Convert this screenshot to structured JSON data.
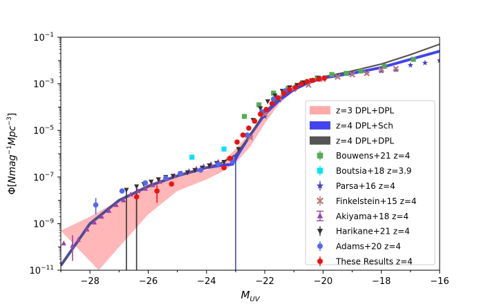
{
  "chart_data": {
    "type": "scatter",
    "title": "",
    "xlabel": "M_UV",
    "ylabel": "Φ[Nmag⁻¹Mpc⁻³]",
    "xlim": [
      -29,
      -16
    ],
    "ylim_log10": [
      -11,
      -1
    ],
    "x_ticks": [
      -28,
      -26,
      -24,
      -22,
      -20,
      -18,
      -16
    ],
    "y_ticks_log10": [
      -11,
      -9,
      -7,
      -5,
      -3,
      -1
    ],
    "legend_position": "center-right",
    "bands": [
      {
        "name": "z=3 DPL+DPL",
        "color": "#ffaaaa",
        "upper": [
          [
            -29,
            -9.3
          ],
          [
            -28,
            -8.7
          ],
          [
            -27,
            -8.0
          ],
          [
            -26,
            -7.3
          ],
          [
            -25,
            -6.9
          ],
          [
            -24,
            -6.7
          ],
          [
            -23.5,
            -6.4
          ],
          [
            -23,
            -5.8
          ],
          [
            -22.5,
            -5.1
          ],
          [
            -22,
            -4.2
          ],
          [
            -21.5,
            -3.5
          ],
          [
            -21,
            -3.1
          ],
          [
            -20.5,
            -2.85
          ]
        ],
        "lower": [
          [
            -27.7,
            -11.0
          ],
          [
            -27,
            -10.0
          ],
          [
            -26,
            -8.6
          ],
          [
            -25,
            -7.6
          ],
          [
            -24,
            -7.1
          ],
          [
            -23.5,
            -6.8
          ],
          [
            -23,
            -6.4
          ],
          [
            -22.5,
            -5.7
          ],
          [
            -22,
            -4.7
          ],
          [
            -21.5,
            -3.85
          ],
          [
            -21,
            -3.3
          ],
          [
            -20.5,
            -3.0
          ]
        ]
      }
    ],
    "lines": [
      {
        "name": "z=4 DPL+Sch",
        "color": "#4444ee",
        "points": [
          [
            -29,
            -10.8
          ],
          [
            -28,
            -9.0
          ],
          [
            -27,
            -8.0
          ],
          [
            -26,
            -7.4
          ],
          [
            -25,
            -6.95
          ],
          [
            -24,
            -6.6
          ],
          [
            -23.5,
            -6.5
          ],
          [
            -23.1,
            -6.45
          ],
          [
            -22.9,
            -6.0
          ],
          [
            -22.5,
            -5.2
          ],
          [
            -22,
            -4.3
          ],
          [
            -21.5,
            -3.7
          ],
          [
            -21,
            -3.25
          ],
          [
            -20.5,
            -2.95
          ],
          [
            -20,
            -2.75
          ],
          [
            -19,
            -2.55
          ],
          [
            -18,
            -2.3
          ],
          [
            -17,
            -1.95
          ],
          [
            -16,
            -1.6
          ]
        ]
      },
      {
        "name": "z=4 DPL+DPL",
        "color": "#555555",
        "points": [
          [
            -29,
            -10.8
          ],
          [
            -28,
            -9.0
          ],
          [
            -27,
            -8.0
          ],
          [
            -26,
            -7.4
          ],
          [
            -25,
            -6.95
          ],
          [
            -24,
            -6.6
          ],
          [
            -23.5,
            -6.4
          ],
          [
            -23,
            -6.05
          ],
          [
            -22.5,
            -5.2
          ],
          [
            -22,
            -4.2
          ],
          [
            -21.5,
            -3.6
          ],
          [
            -21,
            -3.2
          ],
          [
            -20.5,
            -2.9
          ],
          [
            -20,
            -2.7
          ],
          [
            -19,
            -2.45
          ],
          [
            -18,
            -2.15
          ],
          [
            -17,
            -1.75
          ],
          [
            -16,
            -1.3
          ]
        ]
      }
    ],
    "series": [
      {
        "name": "Bouwens+21 z=4",
        "color": "#55aa55",
        "marker": "square",
        "x": [
          -22.7,
          -22.2,
          -21.7,
          -21.2,
          -20.7,
          -20.2,
          -19.7,
          -19.2,
          -18.7,
          -17.9,
          -16.9
        ],
        "y": [
          -4.4,
          -3.9,
          -3.4,
          -3.2,
          -2.95,
          -2.75,
          -2.6,
          -2.55,
          -2.45,
          -2.25,
          -1.95
        ]
      },
      {
        "name": "Boutsia+18 z=3.9",
        "color": "#00e5ee",
        "marker": "square",
        "x": [
          -24.5,
          -23.4
        ],
        "y": [
          -6.15,
          -5.8
        ]
      },
      {
        "name": "Parsa+16 z=4",
        "color": "#4444cc",
        "marker": "star",
        "x": [
          -23,
          -22.5,
          -22,
          -21.5,
          -21,
          -20.5,
          -20,
          -19.5,
          -19,
          -18.5,
          -18,
          -17.5,
          -17,
          -16.5,
          -16
        ],
        "y": [
          -6.1,
          -5.3,
          -4.4,
          -3.7,
          -3.25,
          -2.95,
          -2.75,
          -2.7,
          -2.6,
          -2.55,
          -2.45,
          -2.4,
          -2.2,
          -2.1,
          -2.0
        ]
      },
      {
        "name": "Finkelstein+15 z=4",
        "color": "#bb7777",
        "marker": "x",
        "x": [
          -22.5,
          -22,
          -21.5,
          -21,
          -20.5,
          -20,
          -19.5,
          -19,
          -18.5,
          -18,
          -17.5
        ],
        "y": [
          -5.3,
          -4.3,
          -3.6,
          -3.2,
          -3.05,
          -2.8,
          -2.7,
          -2.6,
          -2.55,
          -2.4,
          -2.35
        ]
      },
      {
        "name": "Akiyama+18 z=4",
        "color": "#9944aa",
        "marker": "triangle-up",
        "x": [
          -28.9,
          -28.6,
          -28.4,
          -28.1,
          -27.85,
          -27.6,
          -27.35,
          -27.1,
          -26.85,
          -26.6,
          -26.35,
          -26.1,
          -25.85,
          -25.6,
          -25.35,
          -25.1,
          -24.85,
          -24.6,
          -24.35,
          -24.1,
          -23.85,
          -23.6
        ],
        "y": [
          -9.85,
          -9.95,
          -9.7,
          -9.25,
          -8.95,
          -8.7,
          -8.45,
          -8.2,
          -8.0,
          -7.75,
          -7.6,
          -7.5,
          -7.35,
          -7.2,
          -7.05,
          -6.95,
          -6.85,
          -6.75,
          -6.65,
          -6.55,
          -6.45,
          -6.35
        ]
      },
      {
        "name": "Harikane+21 z=4",
        "color": "#333333",
        "marker": "triangle-down",
        "x": [
          -26.75,
          -26.4,
          -26.15,
          -25.9,
          -25.65,
          -25.4,
          -25.15,
          -24.9,
          -24.65,
          -24.4,
          -24.15,
          -23.9,
          -23.65,
          -23.4,
          -23.15,
          -22.9,
          -22.65,
          -22.4,
          -22.15,
          -21.9,
          -21.65,
          -21.4,
          -21.15,
          -20.9,
          -20.65,
          -20.4,
          -20.15
        ],
        "y": [
          -7.55,
          -7.4,
          -7.3,
          -7.2,
          -7.1,
          -7.0,
          -6.95,
          -6.85,
          -6.8,
          -6.7,
          -6.6,
          -6.5,
          -6.4,
          -6.35,
          -6.25,
          -5.8,
          -5.2,
          -4.55,
          -4.05,
          -3.75,
          -3.5,
          -3.3,
          -3.15,
          -3.05,
          -2.95,
          -2.85,
          -2.75
        ]
      },
      {
        "name": "Adams+20 z=4",
        "color": "#5566ee",
        "marker": "circle",
        "x": [
          -27.8,
          -26.9,
          -26.1,
          -25.4,
          -24.9,
          -24.2,
          -23.6,
          -23.1,
          -22.6,
          -22.1,
          -21.7,
          -21.3
        ],
        "y": [
          -8.2,
          -7.6,
          -7.25,
          -7.05,
          -6.85,
          -6.7,
          -6.45,
          -6.35,
          -5.2,
          -4.2,
          -3.65,
          -3.3
        ]
      },
      {
        "name": "These Results z=4",
        "color": "#ee1111",
        "marker": "circle",
        "x": [
          -26.4,
          -25.7,
          -25.2,
          -23.4,
          -23.2,
          -22.95,
          -22.75,
          -22.55,
          -22.35,
          -22.15,
          -21.95,
          -21.75,
          -21.55,
          -21.35,
          -21.15,
          -20.95,
          -20.75,
          -20.55,
          -20.35,
          -20.15,
          -19.95
        ],
        "y": [
          -7.85,
          -7.6,
          -7.3,
          -6.6,
          -6.2,
          -5.5,
          -5.2,
          -4.9,
          -4.6,
          -4.3,
          -4.1,
          -3.85,
          -3.6,
          -3.4,
          -3.25,
          -3.15,
          -3.0,
          -2.9,
          -2.85,
          -2.8,
          -2.75
        ]
      }
    ],
    "error_bars": [
      {
        "series": "These Results z=4",
        "x": -26.4,
        "y_lo": -9.2,
        "y_hi": -7.5
      },
      {
        "series": "These Results z=4",
        "x": -25.7,
        "y_lo": -8.1,
        "y_hi": -7.35
      },
      {
        "series": "Akiyama+18 z=4",
        "x": -28.6,
        "y_lo": -10.6,
        "y_hi": -9.5
      },
      {
        "series": "Adams+20 z=4",
        "x": -27.8,
        "y_lo": -8.6,
        "y_hi": -7.9
      },
      {
        "series": "Harikane+21 z=4",
        "x": -26.75,
        "y_lo": -11.0,
        "y_hi": -7.5
      },
      {
        "series": "Harikane+21 z=4",
        "x": -26.4,
        "y_lo": -11.0,
        "y_hi": -7.35
      },
      {
        "series": "Parsa+16 z=4",
        "x": -23.0,
        "y_lo": -11.0,
        "y_hi": -6.1
      }
    ],
    "legend": [
      {
        "label": "z=3 DPL+DPL",
        "type": "band",
        "color": "#ffaaaa"
      },
      {
        "label": "z=4 DPL+Sch",
        "type": "line",
        "color": "#4444ee"
      },
      {
        "label": "z=4 DPL+DPL",
        "type": "line",
        "color": "#555555"
      },
      {
        "label": "Bouwens+21 z=4",
        "type": "square",
        "color": "#55aa55"
      },
      {
        "label": "Boutsia+18 z=3.9",
        "type": "square",
        "color": "#00e5ee"
      },
      {
        "label": "Parsa+16 z=4",
        "type": "star",
        "color": "#4444cc"
      },
      {
        "label": "Finkelstein+15 z=4",
        "type": "x",
        "color": "#bb7777"
      },
      {
        "label": "Akiyama+18 z=4",
        "type": "triangle-up",
        "color": "#9944aa"
      },
      {
        "label": "Harikane+21 z=4",
        "type": "triangle-down",
        "color": "#333333"
      },
      {
        "label": "Adams+20 z=4",
        "type": "circle",
        "color": "#5566ee"
      },
      {
        "label": "These Results z=4",
        "type": "circle",
        "color": "#ee1111"
      }
    ]
  }
}
